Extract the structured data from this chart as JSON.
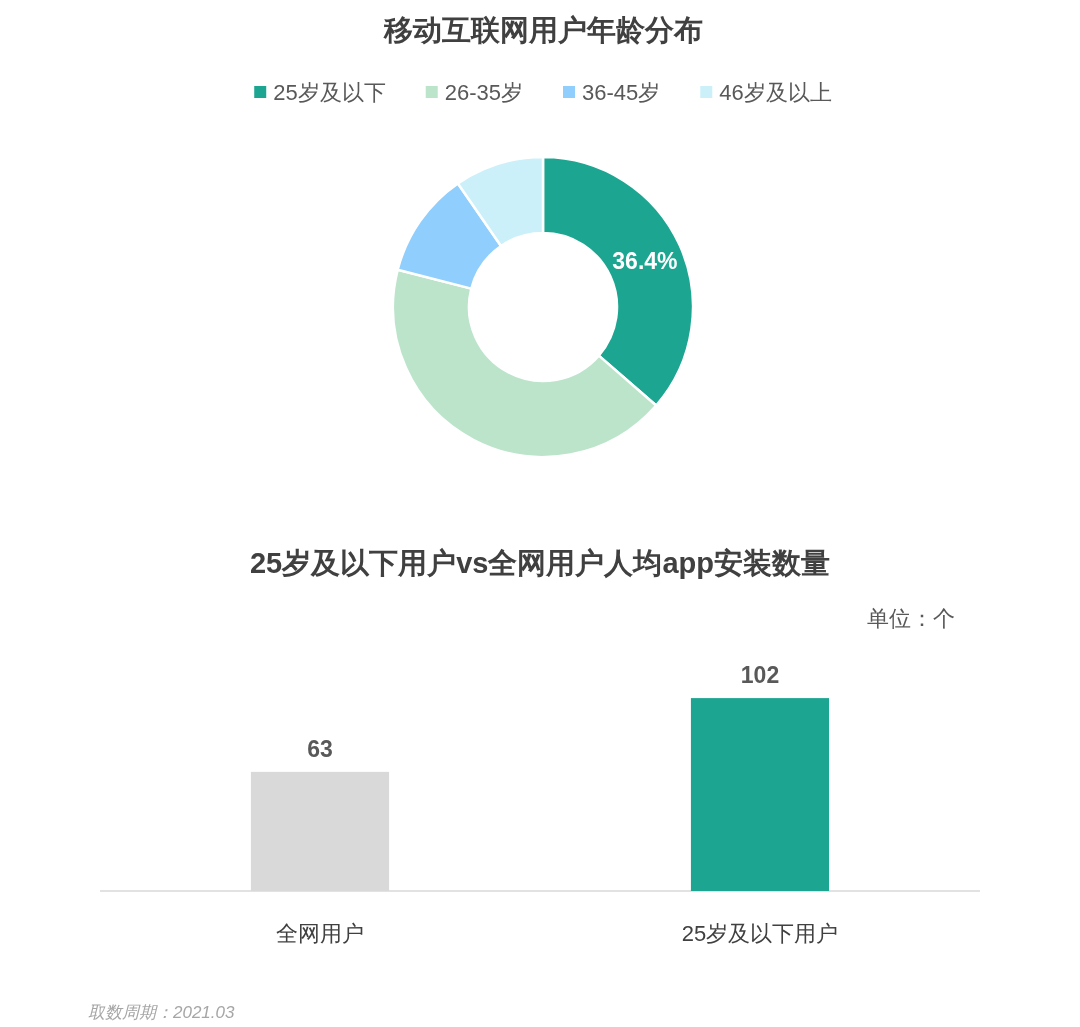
{
  "chart_data": [
    {
      "type": "donut",
      "title": "移动互联网用户年龄分布",
      "categories": [
        "25岁及以下",
        "26-35岁",
        "36-45岁",
        "46岁及以上"
      ],
      "values": [
        36.4,
        42.6,
        11.4,
        9.6
      ],
      "colors": [
        "#1ca590",
        "#bce4cb",
        "#8fcefd",
        "#cbf0fa"
      ],
      "value_labels": [
        "36.4%",
        null,
        null,
        null
      ],
      "legend": "top"
    },
    {
      "type": "bar",
      "title": "25岁及以下用户vs全网用户人均app安装数量",
      "ylabel": "单位：个",
      "categories": [
        "全网用户",
        "25岁及以下用户"
      ],
      "values": [
        63,
        102
      ],
      "colors": [
        "#d9d9d9",
        "#1ca590"
      ],
      "data_labels": true,
      "annotations": [
        "取数周期：2021.03"
      ]
    }
  ]
}
